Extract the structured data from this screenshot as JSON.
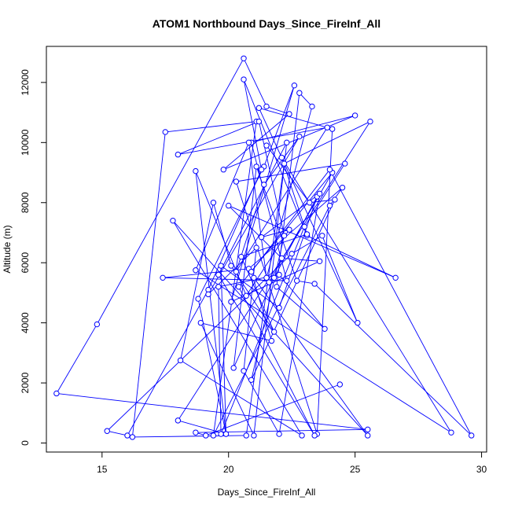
{
  "chart_data": {
    "type": "line",
    "title": "ATOM1 Northbound Days_Since_FireInf_All",
    "xlabel": "Days_Since_FireInf_All",
    "ylabel": "Altitude (m)",
    "xlim": [
      12.8,
      30.2
    ],
    "ylim": [
      -300,
      13200
    ],
    "x_ticks": [
      15,
      20,
      25,
      30
    ],
    "y_ticks": [
      0,
      2000,
      4000,
      6000,
      8000,
      10000,
      12000
    ],
    "grid": false,
    "series_color": "#0000ff",
    "marker": "open-circle",
    "x": [
      24.4,
      19.1,
      18.7,
      25.5,
      13.2,
      14.8,
      20.6,
      21.5,
      22.4,
      19.8,
      25.0,
      20.9,
      22.3,
      17.4,
      20.8,
      24.5,
      24.0,
      19.4,
      21.1,
      17.5,
      16.2,
      20.7,
      22.2,
      25.6,
      18.0,
      19.9,
      18.8,
      21.4,
      22.6,
      20.1,
      23.6,
      22.1,
      20.0,
      26.6,
      23.1,
      20.6,
      21.3,
      19.2,
      16.0,
      15.2,
      22.5,
      23.7,
      25.1,
      21.2,
      24.1,
      23.5,
      20.3,
      24.6,
      23.0,
      19.7,
      19.6,
      22.0,
      23.8,
      21.9,
      22.8,
      23.3,
      21.5,
      20.8,
      18.7,
      28.8,
      22.1,
      23.1,
      20.5,
      21.8,
      20.1,
      19.4,
      18.1,
      22.9,
      17.8,
      25.5,
      21.0,
      21.6,
      24.1,
      20.4,
      23.4,
      19.6,
      22.3,
      21.0,
      18.9,
      21.7,
      20.9,
      24.0,
      29.6,
      23.4,
      22.7,
      21.1,
      20.2,
      21.8,
      23.5,
      22.0,
      19.7,
      19.9,
      18.7,
      20.7,
      22.4,
      21.3,
      23.6,
      22.0,
      20.6,
      21.1,
      19.2,
      22.8,
      21.4,
      20.3,
      23.9,
      18.0,
      21.2,
      22.2,
      20.9,
      24.2,
      23.2,
      21.5
    ],
    "y": [
      1950,
      250,
      350,
      450,
      1650,
      3950,
      12800,
      11200,
      10950,
      9100,
      10900,
      10000,
      5400,
      5500,
      5800,
      8500,
      7900,
      250,
      10700,
      10350,
      200,
      250,
      9300,
      10700,
      750,
      300,
      4800,
      9200,
      11900,
      4700,
      6050,
      6150,
      7900,
      5500,
      6900,
      12100,
      9100,
      5100,
      250,
      400,
      6300,
      6900,
      4000,
      11150,
      10450,
      300,
      8700,
      9300,
      7200,
      300,
      5200,
      5600,
      3800,
      5200,
      11650,
      11200,
      5500,
      10000,
      5750,
      350,
      9500,
      6950,
      6200,
      3700,
      5900,
      8000,
      2750,
      250,
      7400,
      250,
      5500,
      5350,
      9000,
      5200,
      250,
      5600,
      10000,
      250,
      4000,
      3400,
      5700,
      9100,
      250,
      5300,
      5400,
      9200,
      2500,
      5500,
      8200,
      4500,
      5900,
      300,
      9050,
      4900,
      7100,
      6850,
      8300,
      300,
      2400,
      6500,
      4950,
      10200,
      8600,
      5700,
      10500,
      9600,
      10700,
      6900,
      2100,
      8100,
      8000,
      9900
    ]
  }
}
